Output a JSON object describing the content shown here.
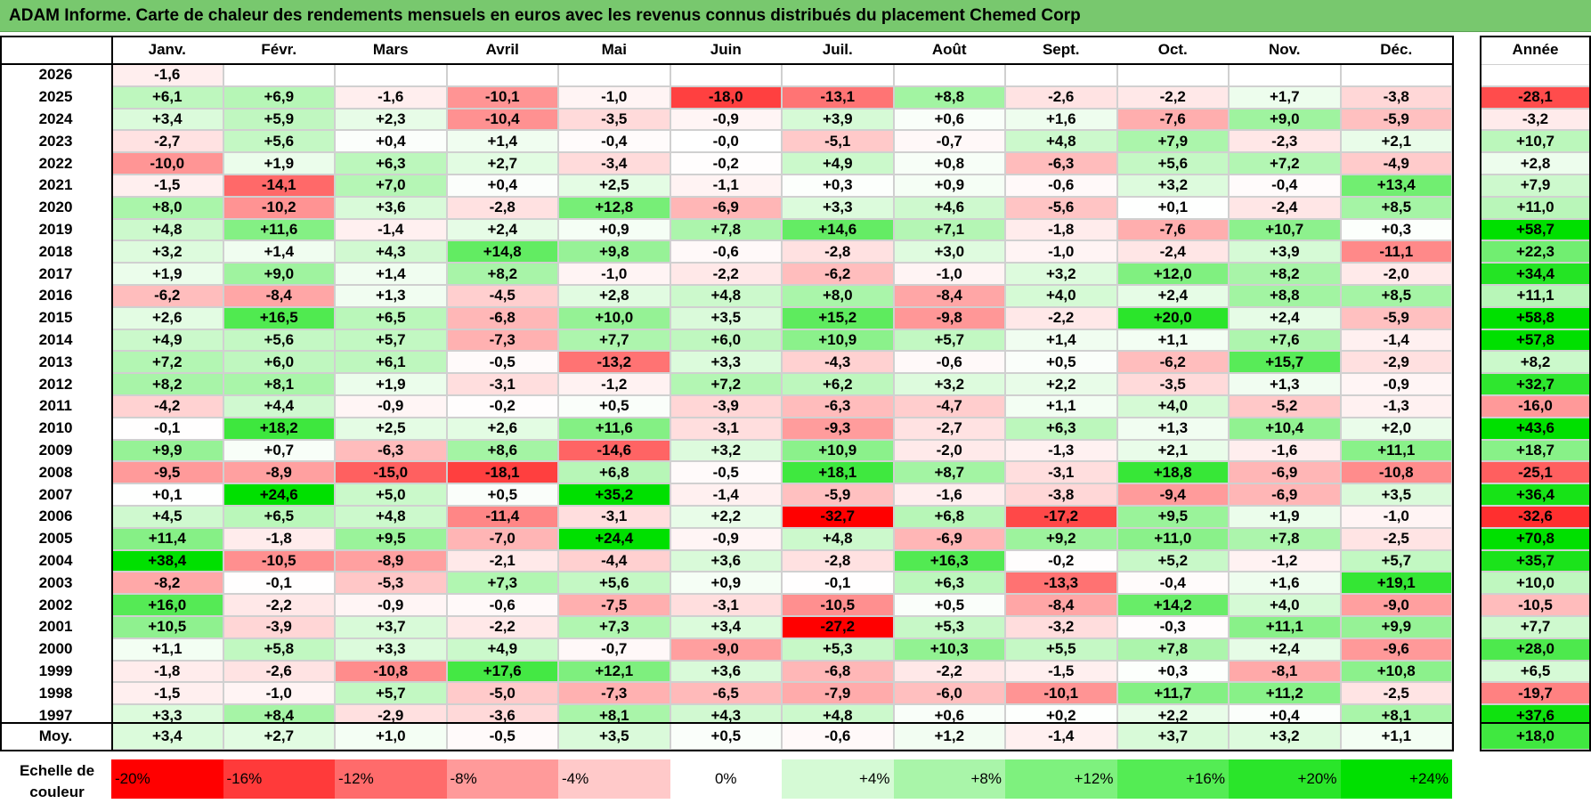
{
  "title": "ADAM Informe. Carte de chaleur des rendements mensuels en euros avec les revenus connus distribués du placement Chemed Corp",
  "chart_data": {
    "type": "heatmap",
    "title": "ADAM Informe. Carte de chaleur des rendements mensuels en euros avec les revenus connus distribués du placement Chemed Corp",
    "columns": [
      "Janv.",
      "Févr.",
      "Mars",
      "Avril",
      "Mai",
      "Juin",
      "Juil.",
      "Août",
      "Sept.",
      "Oct.",
      "Nov.",
      "Déc."
    ],
    "year_header": "Année",
    "rows": [
      {
        "year": "2026",
        "values": [
          "-1,6",
          "",
          "",
          "",
          "",
          "",
          "",
          "",
          "",
          "",
          "",
          ""
        ],
        "annual": ""
      },
      {
        "year": "2025",
        "values": [
          "+6,1",
          "+6,9",
          "-1,6",
          "-10,1",
          "-1,0",
          "-18,0",
          "-13,1",
          "+8,8",
          "-2,6",
          "-2,2",
          "+1,7",
          "-3,8"
        ],
        "annual": "-28,1"
      },
      {
        "year": "2024",
        "values": [
          "+3,4",
          "+5,9",
          "+2,3",
          "-10,4",
          "-3,5",
          "-0,9",
          "+3,9",
          "+0,6",
          "+1,6",
          "-7,6",
          "+9,0",
          "-5,9"
        ],
        "annual": "-3,2"
      },
      {
        "year": "2023",
        "values": [
          "-2,7",
          "+5,6",
          "+0,4",
          "+1,4",
          "-0,4",
          "-0,0",
          "-5,1",
          "-0,7",
          "+4,8",
          "+7,9",
          "-2,3",
          "+2,1"
        ],
        "annual": "+10,7"
      },
      {
        "year": "2022",
        "values": [
          "-10,0",
          "+1,9",
          "+6,3",
          "+2,7",
          "-3,4",
          "-0,2",
          "+4,9",
          "+0,8",
          "-6,3",
          "+5,6",
          "+7,2",
          "-4,9"
        ],
        "annual": "+2,8"
      },
      {
        "year": "2021",
        "values": [
          "-1,5",
          "-14,1",
          "+7,0",
          "+0,4",
          "+2,5",
          "-1,1",
          "+0,3",
          "+0,9",
          "-0,6",
          "+3,2",
          "-0,4",
          "+13,4"
        ],
        "annual": "+7,9"
      },
      {
        "year": "2020",
        "values": [
          "+8,0",
          "-10,2",
          "+3,6",
          "-2,8",
          "+12,8",
          "-6,9",
          "+3,3",
          "+4,6",
          "-5,6",
          "+0,1",
          "-2,4",
          "+8,5"
        ],
        "annual": "+11,0"
      },
      {
        "year": "2019",
        "values": [
          "+4,8",
          "+11,6",
          "-1,4",
          "+2,4",
          "+0,9",
          "+7,8",
          "+14,6",
          "+7,1",
          "-1,8",
          "-7,6",
          "+10,7",
          "+0,3"
        ],
        "annual": "+58,7"
      },
      {
        "year": "2018",
        "values": [
          "+3,2",
          "+1,4",
          "+4,3",
          "+14,8",
          "+9,8",
          "-0,6",
          "-2,8",
          "+3,0",
          "-1,0",
          "-2,4",
          "+3,9",
          "-11,1"
        ],
        "annual": "+22,3"
      },
      {
        "year": "2017",
        "values": [
          "+1,9",
          "+9,0",
          "+1,4",
          "+8,2",
          "-1,0",
          "-2,2",
          "-6,2",
          "-1,0",
          "+3,2",
          "+12,0",
          "+8,2",
          "-2,0"
        ],
        "annual": "+34,4"
      },
      {
        "year": "2016",
        "values": [
          "-6,2",
          "-8,4",
          "+1,3",
          "-4,5",
          "+2,8",
          "+4,8",
          "+8,0",
          "-8,4",
          "+4,0",
          "+2,4",
          "+8,8",
          "+8,5"
        ],
        "annual": "+11,1"
      },
      {
        "year": "2015",
        "values": [
          "+2,6",
          "+16,5",
          "+6,5",
          "-6,8",
          "+10,0",
          "+3,5",
          "+15,2",
          "-9,8",
          "-2,2",
          "+20,0",
          "+2,4",
          "-5,9"
        ],
        "annual": "+58,8"
      },
      {
        "year": "2014",
        "values": [
          "+4,9",
          "+5,6",
          "+5,7",
          "-7,3",
          "+7,7",
          "+6,0",
          "+10,9",
          "+5,7",
          "+1,4",
          "+1,1",
          "+7,6",
          "-1,4"
        ],
        "annual": "+57,8"
      },
      {
        "year": "2013",
        "values": [
          "+7,2",
          "+6,0",
          "+6,1",
          "-0,5",
          "-13,2",
          "+3,3",
          "-4,3",
          "-0,6",
          "+0,5",
          "-6,2",
          "+15,7",
          "-2,9"
        ],
        "annual": "+8,2"
      },
      {
        "year": "2012",
        "values": [
          "+8,2",
          "+8,1",
          "+1,9",
          "-3,1",
          "-1,2",
          "+7,2",
          "+6,2",
          "+3,2",
          "+2,2",
          "-3,5",
          "+1,3",
          "-0,9"
        ],
        "annual": "+32,7"
      },
      {
        "year": "2011",
        "values": [
          "-4,2",
          "+4,4",
          "-0,9",
          "-0,2",
          "+0,5",
          "-3,9",
          "-6,3",
          "-4,7",
          "+1,1",
          "+4,0",
          "-5,2",
          "-1,3"
        ],
        "annual": "-16,0"
      },
      {
        "year": "2010",
        "values": [
          "-0,1",
          "+18,2",
          "+2,5",
          "+2,6",
          "+11,6",
          "-3,1",
          "-9,3",
          "-2,7",
          "+6,3",
          "+1,3",
          "+10,4",
          "+2,0"
        ],
        "annual": "+43,6"
      },
      {
        "year": "2009",
        "values": [
          "+9,9",
          "+0,7",
          "-6,3",
          "+8,6",
          "-14,6",
          "+3,2",
          "+10,9",
          "-2,0",
          "-1,3",
          "+2,1",
          "-1,6",
          "+11,1"
        ],
        "annual": "+18,7"
      },
      {
        "year": "2008",
        "values": [
          "-9,5",
          "-8,9",
          "-15,0",
          "-18,1",
          "+6,8",
          "-0,5",
          "+18,1",
          "+8,7",
          "-3,1",
          "+18,8",
          "-6,9",
          "-10,8"
        ],
        "annual": "-25,1"
      },
      {
        "year": "2007",
        "values": [
          "+0,1",
          "+24,6",
          "+5,0",
          "+0,5",
          "+35,2",
          "-1,4",
          "-5,9",
          "-1,6",
          "-3,8",
          "-9,4",
          "-6,9",
          "+3,5"
        ],
        "annual": "+36,4"
      },
      {
        "year": "2006",
        "values": [
          "+4,5",
          "+6,5",
          "+4,8",
          "-11,4",
          "-3,1",
          "+2,2",
          "-32,7",
          "+6,8",
          "-17,2",
          "+9,5",
          "+1,9",
          "-1,0"
        ],
        "annual": "-32,6"
      },
      {
        "year": "2005",
        "values": [
          "+11,4",
          "-1,8",
          "+9,5",
          "-7,0",
          "+24,4",
          "-0,9",
          "+4,8",
          "-6,9",
          "+9,2",
          "+11,0",
          "+7,8",
          "-2,5"
        ],
        "annual": "+70,8"
      },
      {
        "year": "2004",
        "values": [
          "+38,4",
          "-10,5",
          "-8,9",
          "-2,1",
          "-4,4",
          "+3,6",
          "-2,8",
          "+16,3",
          "-0,2",
          "+5,2",
          "-1,2",
          "+5,7"
        ],
        "annual": "+35,7"
      },
      {
        "year": "2003",
        "values": [
          "-8,2",
          "-0,1",
          "-5,3",
          "+7,3",
          "+5,6",
          "+0,9",
          "-0,1",
          "+6,3",
          "-13,3",
          "-0,4",
          "+1,6",
          "+19,1"
        ],
        "annual": "+10,0"
      },
      {
        "year": "2002",
        "values": [
          "+16,0",
          "-2,2",
          "-0,9",
          "-0,6",
          "-7,5",
          "-3,1",
          "-10,5",
          "+0,5",
          "-8,4",
          "+14,2",
          "+4,0",
          "-9,0"
        ],
        "annual": "-10,5"
      },
      {
        "year": "2001",
        "values": [
          "+10,5",
          "-3,9",
          "+3,7",
          "-2,2",
          "+7,3",
          "+3,4",
          "-27,2",
          "+5,3",
          "-3,2",
          "-0,3",
          "+11,1",
          "+9,9"
        ],
        "annual": "+7,7"
      },
      {
        "year": "2000",
        "values": [
          "+1,1",
          "+5,8",
          "+3,3",
          "+4,9",
          "-0,7",
          "-9,0",
          "+5,3",
          "+10,3",
          "+5,5",
          "+7,8",
          "+2,4",
          "-9,6"
        ],
        "annual": "+28,0"
      },
      {
        "year": "1999",
        "values": [
          "-1,8",
          "-2,6",
          "-10,8",
          "+17,6",
          "+12,1",
          "+3,6",
          "-6,8",
          "-2,2",
          "-1,5",
          "+0,3",
          "-8,1",
          "+10,8"
        ],
        "annual": "+6,5"
      },
      {
        "year": "1998",
        "values": [
          "-1,5",
          "-1,0",
          "+5,7",
          "-5,0",
          "-7,3",
          "-6,5",
          "-7,9",
          "-6,0",
          "-10,1",
          "+11,7",
          "+11,2",
          "-2,5"
        ],
        "annual": "-19,7"
      },
      {
        "year": "1997",
        "values": [
          "+3,3",
          "+8,4",
          "-2,9",
          "-3,6",
          "+8,1",
          "+4,3",
          "+4,8",
          "+0,6",
          "+0,2",
          "+2,2",
          "+0,4",
          "+8,1"
        ],
        "annual": "+37,6"
      }
    ],
    "average": {
      "label": "Moy.",
      "values": [
        "+3,4",
        "+2,7",
        "+1,0",
        "-0,5",
        "+3,5",
        "+0,5",
        "-0,6",
        "+1,2",
        "-1,4",
        "+3,7",
        "+3,2",
        "+1,1"
      ],
      "annual": "+18,0"
    },
    "legend": {
      "label_line1": "Echelle de",
      "label_line2": "couleur",
      "stops": [
        {
          "label": "-20%",
          "value": -20,
          "color": "#ff0000"
        },
        {
          "label": "-16%",
          "value": -16,
          "color": "#ff3a3a"
        },
        {
          "label": "-12%",
          "value": -12,
          "color": "#ff6b6b"
        },
        {
          "label": "-8%",
          "value": -8,
          "color": "#ff9a9a"
        },
        {
          "label": "-4%",
          "value": -4,
          "color": "#ffc9c9"
        },
        {
          "label": "0%",
          "value": 0,
          "color": "#ffffff"
        },
        {
          "label": "+4%",
          "value": 4,
          "color": "#d5fad5"
        },
        {
          "label": "+8%",
          "value": 8,
          "color": "#a9f5a9"
        },
        {
          "label": "+12%",
          "value": 12,
          "color": "#7ef17e"
        },
        {
          "label": "+16%",
          "value": 16,
          "color": "#54ec54"
        },
        {
          "label": "+20%",
          "value": 20,
          "color": "#2ae52a"
        },
        {
          "label": "+24%",
          "value": 24,
          "color": "#00e000"
        }
      ]
    }
  }
}
